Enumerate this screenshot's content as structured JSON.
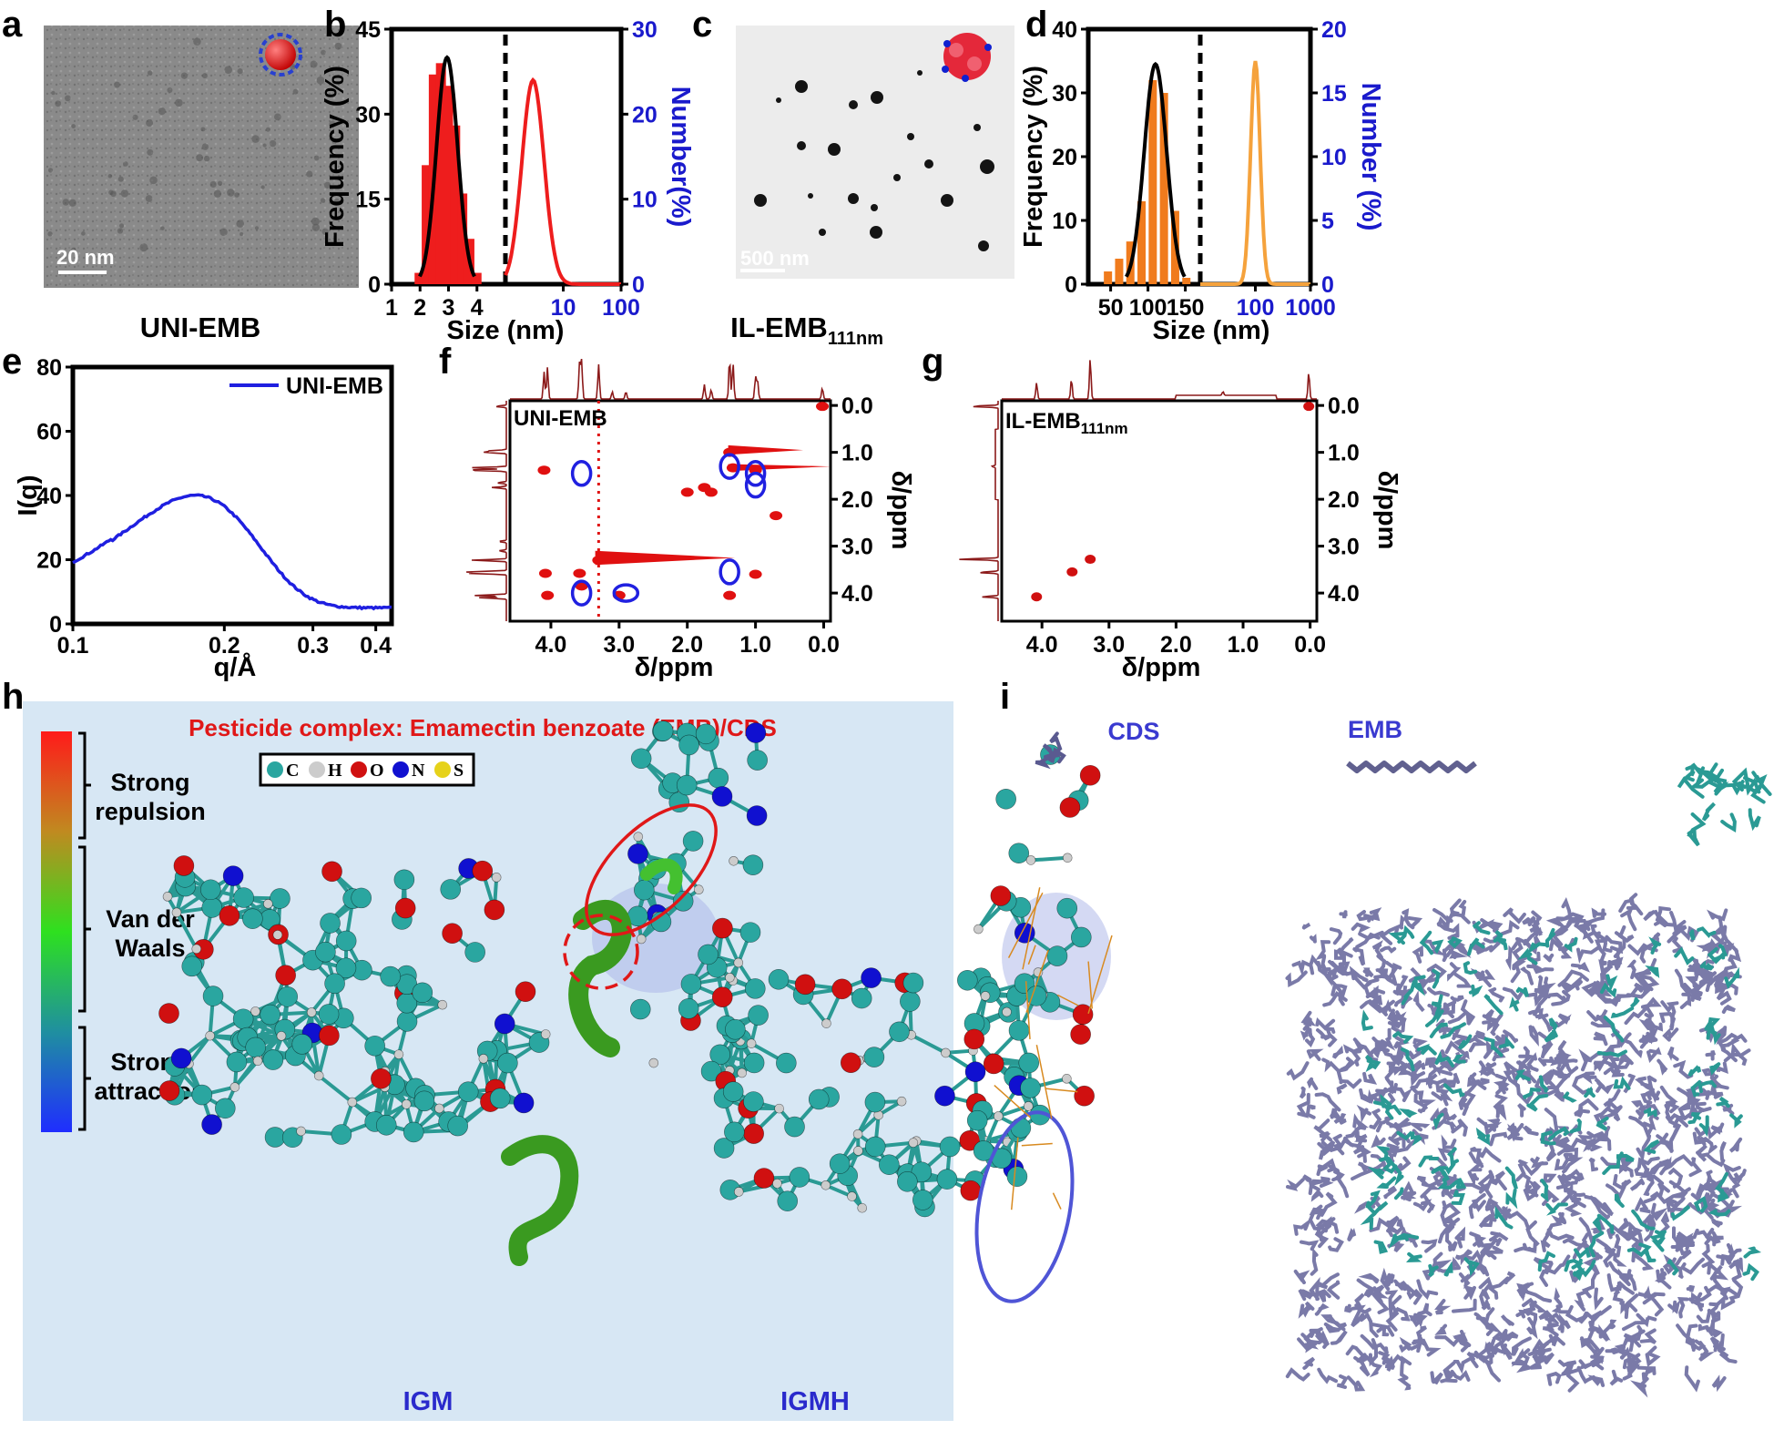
{
  "panels": {
    "a": {
      "letter": "a",
      "scale_bar": "20 nm",
      "caption": "UNI-EMB"
    },
    "b": {
      "letter": "b",
      "y_label": "Frequency (%)",
      "y2_label": "Number(%)",
      "x_label": "Size (nm)"
    },
    "c": {
      "letter": "c",
      "scale_bar": "500 nm",
      "caption_main": "IL-EMB",
      "caption_sub": "111nm"
    },
    "d": {
      "letter": "d",
      "y_label": "Frequency (%)",
      "y2_label": "Number (%)",
      "x_label": "Size (nm)"
    },
    "e": {
      "letter": "e",
      "y_label": "I(q)",
      "x_label": "q/Å",
      "legend": "UNI-EMB"
    },
    "f": {
      "letter": "f",
      "label": "UNI-EMB",
      "x_label": "δ/ppm",
      "y_label": "δ/ppm"
    },
    "g": {
      "letter": "g",
      "label_main": "IL-EMB",
      "label_sub": "111nm",
      "x_label": "δ/ppm",
      "y_label": "δ/ppm"
    },
    "h": {
      "letter": "h",
      "title": "Pesticide complex: Emamectin benzoate (EMB)/CDS",
      "scale_labels": [
        [
          "Strong",
          "repulsion"
        ],
        [
          "Van der",
          "Waals"
        ],
        [
          "Strong",
          "attraction"
        ]
      ],
      "atom_key": [
        "C",
        "H",
        "O",
        "N",
        "S"
      ],
      "atom_colors": [
        "#2aa6a0",
        "#cccccc",
        "#d01010",
        "#1010d0",
        "#e6d21a"
      ],
      "left_label": "IGM",
      "right_label": "IGMH"
    },
    "i": {
      "letter": "i",
      "cds_label": "CDS",
      "emb_label": "EMB"
    }
  },
  "chart_data": [
    {
      "id": "b",
      "type": "bar+line",
      "left": {
        "x_axis": "Size (nm)",
        "xticks": [
          "1",
          "2",
          "3",
          "4"
        ],
        "xlim": [
          1,
          5
        ],
        "y_axis": "Frequency (%)",
        "yticks": [
          "0",
          "15",
          "30",
          "45"
        ],
        "ylim": [
          0,
          45
        ],
        "bars": {
          "x": [
            2.0,
            2.25,
            2.5,
            2.75,
            3.0,
            3.25,
            3.5,
            3.75,
            4.0
          ],
          "values": [
            2,
            21,
            37,
            39,
            35,
            28,
            16,
            8,
            2
          ]
        },
        "fit": {
          "type": "gaussian",
          "center": 2.95,
          "peak": 40,
          "sigma": 0.37
        }
      },
      "right": {
        "x_axis": "log size",
        "xticks": [
          "10",
          "100"
        ],
        "xlim": [
          1,
          100
        ],
        "y_axis": "Number(%)",
        "yticks": [
          "0",
          "10",
          "20",
          "30"
        ],
        "ylim": [
          0,
          30
        ],
        "curve": {
          "type": "peak",
          "center": 3.0,
          "peak": 24,
          "width": 0.42
        }
      }
    },
    {
      "id": "d",
      "type": "bar+line",
      "left": {
        "x_axis": "Size (nm)",
        "xticks": [
          "50",
          "100",
          "150"
        ],
        "xlim": [
          20,
          170
        ],
        "y_axis": "Frequency (%)",
        "yticks": [
          "0",
          "10",
          "20",
          "30",
          "40"
        ],
        "ylim": [
          0,
          40
        ],
        "bars": {
          "x": [
            47,
            62,
            77,
            92,
            107,
            122,
            137,
            152
          ],
          "values": [
            2,
            4,
            6.7,
            13,
            32,
            30,
            11.5,
            1
          ]
        },
        "fit": {
          "type": "gaussian",
          "center": 110,
          "peak": 34.5,
          "sigma": 15
        }
      },
      "right": {
        "x_axis": "log size",
        "xticks": [
          "100",
          "1000"
        ],
        "xlim": [
          10,
          1000
        ],
        "y_axis": "Number (%)",
        "yticks": [
          "0",
          "5",
          "10",
          "15",
          "20"
        ],
        "ylim": [
          0,
          20
        ],
        "curve": {
          "type": "peak",
          "center": 100,
          "peak": 17.5,
          "width": 0.19
        }
      }
    },
    {
      "id": "e",
      "type": "line",
      "x_axis": "q/Å",
      "xticks": [
        "0.1",
        "0.2",
        "0.3",
        "0.4"
      ],
      "xlim": [
        0.1,
        0.43
      ],
      "y_axis": "I(q)",
      "yticks": [
        "0",
        "20",
        "40",
        "60",
        "80"
      ],
      "ylim": [
        0,
        80
      ],
      "series": [
        {
          "name": "UNI-EMB",
          "peak_q": 0.175,
          "peak_I": 40,
          "baseline": 5
        }
      ]
    },
    {
      "id": "f",
      "type": "nmr-2d",
      "axis_ticks": [
        "4.0",
        "3.0",
        "2.0",
        "1.0",
        "0.0"
      ],
      "y_ticks": [
        "0.0",
        "1.0",
        "2.0",
        "3.0",
        "4.0"
      ],
      "range": [
        4.6,
        -0.1
      ]
    },
    {
      "id": "g",
      "type": "nmr-2d",
      "axis_ticks": [
        "4.0",
        "3.0",
        "2.0",
        "1.0",
        "0.0"
      ],
      "y_ticks": [
        "0.0",
        "1.0",
        "2.0",
        "3.0",
        "4.0"
      ],
      "range": [
        4.6,
        -0.1
      ],
      "cross_peaks": [
        [
          4.08,
          4.08
        ],
        [
          3.55,
          3.55
        ],
        [
          3.28,
          3.28
        ],
        [
          0.02,
          0.02
        ]
      ]
    }
  ]
}
